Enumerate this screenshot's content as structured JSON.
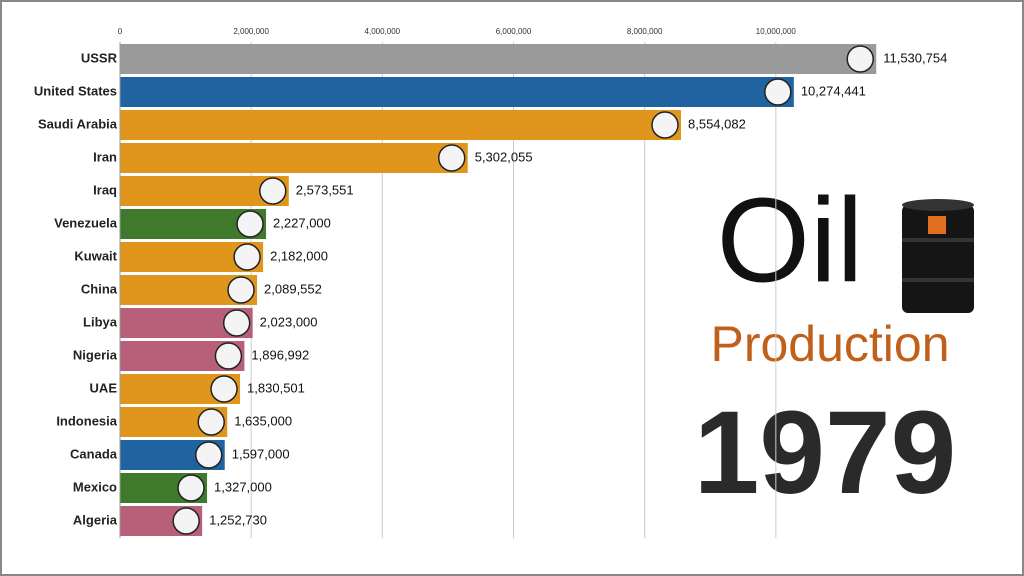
{
  "chart_data": {
    "type": "bar",
    "orientation": "horizontal",
    "title": "Oil",
    "subtitle": "Production",
    "period": "1979",
    "categories": [
      "USSR",
      "United States",
      "Saudi Arabia",
      "Iran",
      "Iraq",
      "Venezuela",
      "Kuwait",
      "China",
      "Libya",
      "Nigeria",
      "UAE",
      "Indonesia",
      "Canada",
      "Mexico",
      "Algeria"
    ],
    "values": [
      11530754,
      10274441,
      8554082,
      5302055,
      2573551,
      2227000,
      2182000,
      2089552,
      2023000,
      1896992,
      1830501,
      1635000,
      1597000,
      1327000,
      1252730
    ],
    "value_labels": [
      "11,530,754",
      "10,274,441",
      "8,554,082",
      "5,302,055",
      "2,573,551",
      "2,227,000",
      "2,182,000",
      "2,089,552",
      "2,023,000",
      "1,896,992",
      "1,830,501",
      "1,635,000",
      "1,597,000",
      "1,327,000",
      "1,252,730"
    ],
    "colors": [
      "#9a9a9a",
      "#1f64a0",
      "#e0961c",
      "#e0961c",
      "#e0961c",
      "#3f7a2c",
      "#e0961c",
      "#e0961c",
      "#b8607a",
      "#b8607a",
      "#e0961c",
      "#e0961c",
      "#1f64a0",
      "#3f7a2c",
      "#b8607a"
    ],
    "xlim": [
      0,
      12000000
    ],
    "xticks": [
      0,
      {
        "value": 2000000,
        "label": "2,000,000"
      },
      {
        "value": 4000000,
        "label": "4,000,000"
      },
      {
        "value": 6000000,
        "label": "6,000,000"
      },
      {
        "value": 8000000,
        "label": "8,000,000"
      },
      {
        "value": 10000000,
        "label": "10,000,000"
      }
    ],
    "grid": true
  }
}
